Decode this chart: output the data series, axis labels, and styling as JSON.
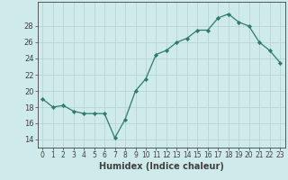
{
  "x": [
    0,
    1,
    2,
    3,
    4,
    5,
    6,
    7,
    8,
    9,
    10,
    11,
    12,
    13,
    14,
    15,
    16,
    17,
    18,
    19,
    20,
    21,
    22,
    23
  ],
  "y": [
    19.0,
    18.0,
    18.2,
    17.5,
    17.2,
    17.2,
    17.2,
    14.2,
    16.5,
    20.0,
    21.5,
    24.5,
    25.0,
    26.0,
    26.5,
    27.5,
    27.5,
    29.0,
    29.5,
    28.5,
    28.0,
    26.0,
    25.0,
    23.5
  ],
  "xlabel": "Humidex (Indice chaleur)",
  "ylim": [
    13,
    31
  ],
  "xlim": [
    -0.5,
    23.5
  ],
  "yticks": [
    14,
    16,
    18,
    20,
    22,
    24,
    26,
    28
  ],
  "xticks": [
    0,
    1,
    2,
    3,
    4,
    5,
    6,
    7,
    8,
    9,
    10,
    11,
    12,
    13,
    14,
    15,
    16,
    17,
    18,
    19,
    20,
    21,
    22,
    23
  ],
  "line_color": "#2e7b6e",
  "marker_color": "#2e7b6e",
  "bg_color": "#ceeaea",
  "grid_color": "#b8d4d4",
  "axes_color": "#404040",
  "label_fontsize": 7.0,
  "tick_fontsize": 6.0
}
